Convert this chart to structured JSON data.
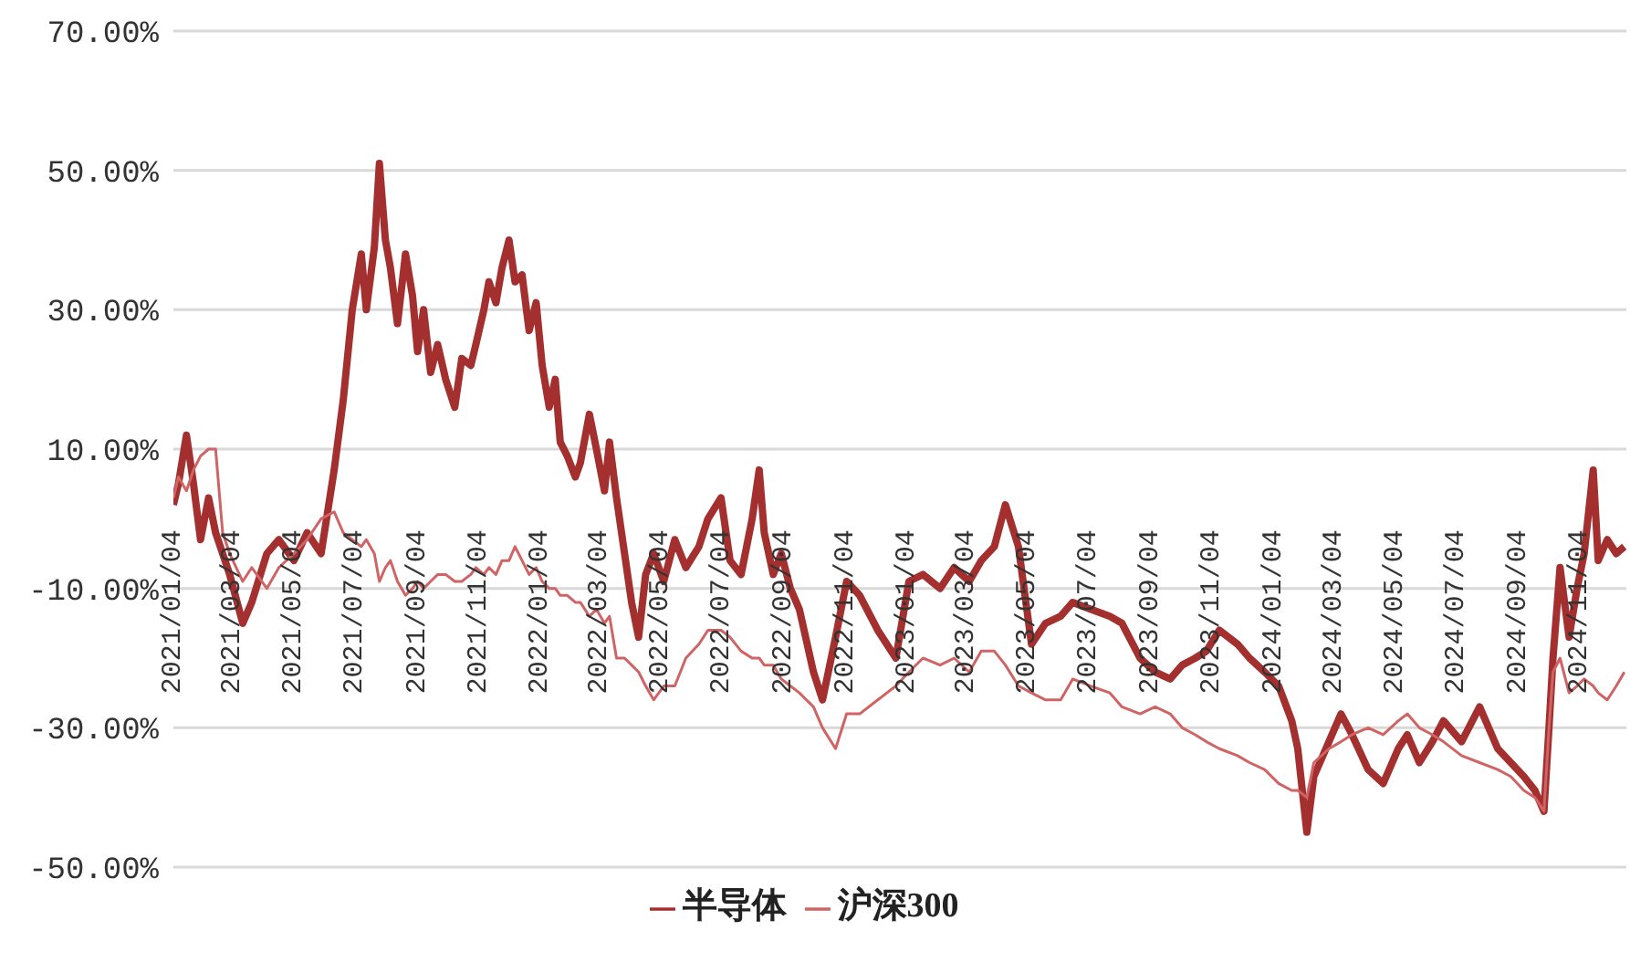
{
  "chart_data": {
    "type": "line",
    "x": [
      "2021-01-04",
      "2021-01-09",
      "2021-01-17",
      "2021-01-24",
      "2021-01-31",
      "2021-02-08",
      "2021-02-15",
      "2021-02-22",
      "2021-03-01",
      "2021-03-14",
      "2021-03-23",
      "2021-04-07",
      "2021-04-19",
      "2021-05-04",
      "2021-05-17",
      "2021-05-31",
      "2021-06-13",
      "2021-06-22",
      "2021-07-01",
      "2021-07-10",
      "2021-07-15",
      "2021-07-23",
      "2021-07-28",
      "2021-08-03",
      "2021-08-08",
      "2021-08-15",
      "2021-08-23",
      "2021-08-30",
      "2021-09-04",
      "2021-09-10",
      "2021-09-17",
      "2021-09-24",
      "2021-10-02",
      "2021-10-11",
      "2021-10-18",
      "2021-10-27",
      "2021-11-01",
      "2021-11-09",
      "2021-11-14",
      "2021-11-21",
      "2021-11-27",
      "2021-12-04",
      "2021-12-10",
      "2021-12-17",
      "2021-12-24",
      "2021-12-31",
      "2022-01-06",
      "2022-01-13",
      "2022-01-19",
      "2022-01-24",
      "2022-01-31",
      "2022-02-08",
      "2022-02-13",
      "2022-02-22",
      "2022-03-01",
      "2022-03-09",
      "2022-03-14",
      "2022-03-21",
      "2022-03-29",
      "2022-04-05",
      "2022-04-12",
      "2022-04-19",
      "2022-04-27",
      "2022-05-07",
      "2022-05-18",
      "2022-05-29",
      "2022-06-11",
      "2022-06-20",
      "2022-07-03",
      "2022-07-12",
      "2022-07-23",
      "2022-08-03",
      "2022-08-10",
      "2022-08-15",
      "2022-08-24",
      "2022-09-01",
      "2022-09-10",
      "2022-09-19",
      "2022-10-03",
      "2022-10-12",
      "2022-10-25",
      "2022-11-05",
      "2022-11-18",
      "2022-12-06",
      "2022-12-24",
      "2023-01-06",
      "2023-01-20",
      "2023-02-06",
      "2023-02-20",
      "2023-03-07",
      "2023-03-19",
      "2023-04-01",
      "2023-04-12",
      "2023-04-25",
      "2023-05-08",
      "2023-05-22",
      "2023-06-06",
      "2023-06-18",
      "2023-07-06",
      "2023-07-25",
      "2023-08-06",
      "2023-08-24",
      "2023-09-08",
      "2023-09-23",
      "2023-10-05",
      "2023-10-18",
      "2023-10-29",
      "2023-11-11",
      "2023-11-29",
      "2023-12-11",
      "2023-12-26",
      "2024-01-09",
      "2024-01-22",
      "2024-01-28",
      "2024-02-06",
      "2024-02-13",
      "2024-02-28",
      "2024-03-11",
      "2024-03-22",
      "2024-04-07",
      "2024-04-22",
      "2024-05-07",
      "2024-05-16",
      "2024-05-28",
      "2024-06-10",
      "2024-06-21",
      "2024-07-09",
      "2024-07-27",
      "2024-08-14",
      "2024-08-27",
      "2024-09-09",
      "2024-09-20",
      "2024-09-29",
      "2024-10-04",
      "2024-10-08",
      "2024-10-15",
      "2024-10-24",
      "2024-11-01",
      "2024-11-08",
      "2024-11-17",
      "2024-11-22",
      "2024-12-01",
      "2024-12-10",
      "2024-12-18"
    ],
    "series": [
      {
        "name": "半导体",
        "color": "#a3302f",
        "values": [
          2,
          5,
          12,
          5,
          -3,
          3,
          -2,
          -5,
          -8,
          -15,
          -12,
          -5,
          -3,
          -6,
          -2,
          -5,
          7,
          17,
          30,
          38,
          30,
          39,
          51,
          40,
          36,
          28,
          38,
          32,
          24,
          30,
          21,
          25,
          20,
          16,
          23,
          22,
          25,
          30,
          34,
          31,
          36,
          40,
          34,
          35,
          27,
          31,
          22,
          16,
          20,
          11,
          9,
          6,
          8,
          15,
          10,
          4,
          11,
          3,
          -5,
          -12,
          -17,
          -8,
          -5,
          -9,
          -3,
          -7,
          -4,
          0,
          3,
          -6,
          -8,
          0,
          7,
          -2,
          -8,
          -5,
          -10,
          -13,
          -22,
          -26,
          -17,
          -9,
          -11,
          -16,
          -20,
          -9,
          -8,
          -10,
          -7,
          -9,
          -6,
          -4,
          2,
          -4,
          -18,
          -15,
          -14,
          -12,
          -13,
          -14,
          -15,
          -20,
          -22,
          -23,
          -21,
          -20,
          -19,
          -16,
          -18,
          -20,
          -22,
          -24,
          -29,
          -33,
          -45,
          -37,
          -32,
          -28,
          -31,
          -36,
          -38,
          -33,
          -31,
          -35,
          -32,
          -29,
          -32,
          -27,
          -33,
          -35,
          -37,
          -39,
          -42,
          -30,
          -20,
          -7,
          -17,
          -10,
          -5,
          7,
          -6,
          -3,
          -5,
          -4
        ]
      },
      {
        "name": "沪深300",
        "color": "#d06464",
        "values": [
          3,
          6,
          4,
          7,
          9,
          10,
          10,
          -2,
          -5,
          -9,
          -7,
          -10,
          -7,
          -5,
          -3,
          0,
          1,
          -2,
          -3,
          -4,
          -3,
          -5,
          -9,
          -7,
          -6,
          -9,
          -11,
          -10,
          -9,
          -10,
          -9,
          -8,
          -8,
          -9,
          -9,
          -8,
          -7,
          -8,
          -7,
          -8,
          -6,
          -6,
          -4,
          -6,
          -8,
          -7,
          -9,
          -10,
          -10,
          -11,
          -11,
          -12,
          -12,
          -14,
          -13,
          -15,
          -14,
          -20,
          -20,
          -21,
          -22,
          -24,
          -26,
          -24,
          -24,
          -20,
          -18,
          -16,
          -16,
          -17,
          -19,
          -20,
          -20,
          -21,
          -21,
          -23,
          -24,
          -25,
          -27,
          -30,
          -33,
          -28,
          -28,
          -26,
          -24,
          -22,
          -20,
          -21,
          -20,
          -22,
          -19,
          -19,
          -21,
          -24,
          -25,
          -26,
          -26,
          -23,
          -24,
          -25,
          -27,
          -28,
          -27,
          -28,
          -30,
          -31,
          -32,
          -33,
          -34,
          -35,
          -36,
          -38,
          -39,
          -39,
          -40,
          -35,
          -33,
          -32,
          -31,
          -30,
          -31,
          -29,
          -28,
          -30,
          -31,
          -32,
          -34,
          -35,
          -36,
          -37,
          -39,
          -40,
          -42,
          -30,
          -22,
          -20,
          -25,
          -24,
          -23,
          -24,
          -25,
          -26,
          -24,
          -22
        ]
      }
    ],
    "xlim": [
      "2021-01-04",
      "2024-12-20"
    ],
    "xticks": [
      {
        "value": "2021-01-04",
        "label": "2021/01/04"
      },
      {
        "value": "2021-03-04",
        "label": "2021/03/04"
      },
      {
        "value": "2021-05-04",
        "label": "2021/05/04"
      },
      {
        "value": "2021-07-04",
        "label": "2021/07/04"
      },
      {
        "value": "2021-09-04",
        "label": "2021/09/04"
      },
      {
        "value": "2021-11-04",
        "label": "2021/11/04"
      },
      {
        "value": "2022-01-04",
        "label": "2022/01/04"
      },
      {
        "value": "2022-03-04",
        "label": "2022/03/04"
      },
      {
        "value": "2022-05-04",
        "label": "2022/05/04"
      },
      {
        "value": "2022-07-04",
        "label": "2022/07/04"
      },
      {
        "value": "2022-09-04",
        "label": "2022/09/04"
      },
      {
        "value": "2022-11-04",
        "label": "2022/11/04"
      },
      {
        "value": "2023-01-04",
        "label": "2023/01/04"
      },
      {
        "value": "2023-03-04",
        "label": "2023/03/04"
      },
      {
        "value": "2023-05-04",
        "label": "2023/05/04"
      },
      {
        "value": "2023-07-04",
        "label": "2023/07/04"
      },
      {
        "value": "2023-09-04",
        "label": "2023/09/04"
      },
      {
        "value": "2023-11-04",
        "label": "2023/11/04"
      },
      {
        "value": "2024-01-04",
        "label": "2024/01/04"
      },
      {
        "value": "2024-03-04",
        "label": "2024/03/04"
      },
      {
        "value": "2024-05-04",
        "label": "2024/05/04"
      },
      {
        "value": "2024-07-04",
        "label": "2024/07/04"
      },
      {
        "value": "2024-09-04",
        "label": "2024/09/04"
      },
      {
        "value": "2024-11-04",
        "label": "2024/11/04"
      }
    ],
    "ylim": [
      -50,
      70
    ],
    "yticks": [
      {
        "value": -50,
        "label": "-50.00%"
      },
      {
        "value": -30,
        "label": "-30.00%"
      },
      {
        "value": -10,
        "label": "-10.00%"
      },
      {
        "value": 10,
        "label": "10.00%"
      },
      {
        "value": 30,
        "label": "30.00%"
      },
      {
        "value": 50,
        "label": "50.00%"
      },
      {
        "value": 70,
        "label": "70.00%"
      }
    ],
    "grid": "y",
    "legend": "bottom",
    "marker": "none",
    "line_style": "solid"
  }
}
